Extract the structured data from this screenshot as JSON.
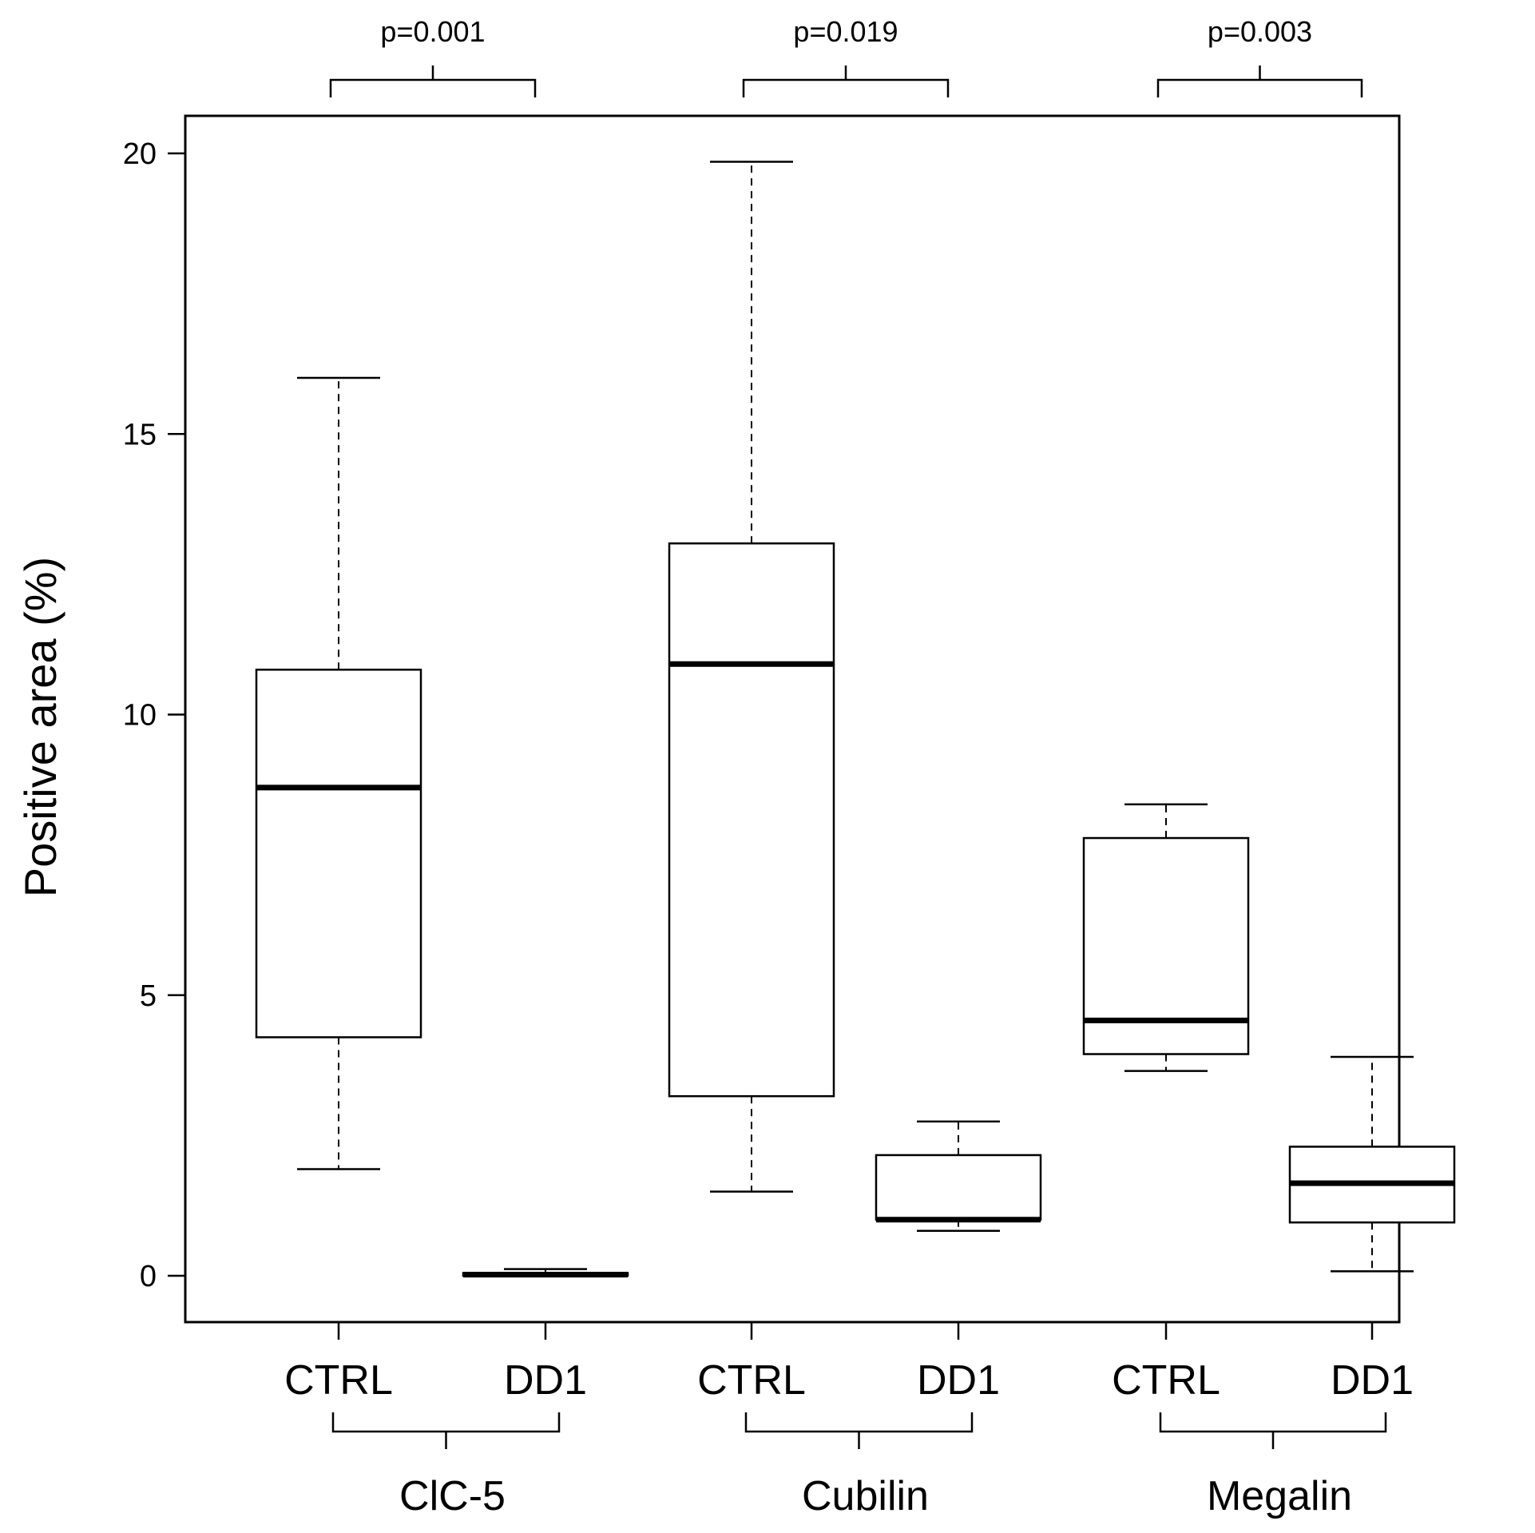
{
  "chart_data": {
    "type": "boxplot",
    "title": "",
    "xlabel": "",
    "ylabel": "Positive area (%)",
    "ylim": [
      -0.8,
      20.7
    ],
    "yticks": [
      0,
      5,
      10,
      15,
      20
    ],
    "boxes": [
      {
        "group": "ClC-5",
        "label": "CTRL",
        "min": 1.9,
        "q1": 4.25,
        "median": 8.7,
        "q3": 10.8,
        "max": 16.0
      },
      {
        "group": "ClC-5",
        "label": "DD1",
        "min": 0.0,
        "q1": 0.0,
        "median": 0.02,
        "q3": 0.05,
        "max": 0.12
      },
      {
        "group": "Cubilin",
        "label": "CTRL",
        "min": 1.5,
        "q1": 3.2,
        "median": 10.9,
        "q3": 13.05,
        "max": 19.85
      },
      {
        "group": "Cubilin",
        "label": "DD1",
        "min": 0.8,
        "q1": 1.0,
        "median": 1.0,
        "q3": 2.15,
        "max": 2.75
      },
      {
        "group": "Megalin",
        "label": "CTRL",
        "min": 3.65,
        "q1": 3.95,
        "median": 4.55,
        "q3": 7.8,
        "max": 8.4
      },
      {
        "group": "Megalin",
        "label": "DD1",
        "min": 0.08,
        "q1": 0.95,
        "median": 1.65,
        "q3": 2.3,
        "max": 3.9
      }
    ],
    "groups": [
      {
        "name": "ClC-5",
        "p_value": "p=0.001"
      },
      {
        "name": "Cubilin",
        "p_value": "p=0.019"
      },
      {
        "name": "Megalin",
        "p_value": "p=0.003"
      }
    ]
  }
}
